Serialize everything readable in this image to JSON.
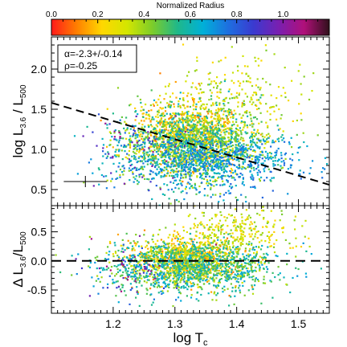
{
  "chart_data": [
    {
      "type": "colorbar",
      "label": "Normalized Radius",
      "range": [
        0.0,
        1.2
      ],
      "ticks": [
        "0.0",
        "0.2",
        "0.4",
        "0.6",
        "0.8",
        "1.0"
      ],
      "colormap": [
        "#ff1a1a",
        "#ff7f00",
        "#ffd700",
        "#d4e600",
        "#7ccc2a",
        "#1fb88a",
        "#00b0d8",
        "#1e6fe0",
        "#3a3ad0",
        "#7a1fb0",
        "#b0107a",
        "#30101a"
      ]
    },
    {
      "type": "scatter",
      "panel": "top",
      "xlabel": "log T",
      "xlabel_sub": "c",
      "ylabel": "log L",
      "ylabel_sub": "3.6",
      "ylabel_tail": " / L",
      "ylabel_tail_sub": "500",
      "xlim": [
        1.1,
        1.55
      ],
      "ylim": [
        0.3,
        2.4
      ],
      "yticks": [
        "0.5",
        "1.0",
        "1.5",
        "2.0"
      ],
      "annotations": [
        "α=-2.3+/-0.14",
        "ρ=-0.25"
      ],
      "fit_line": {
        "x": [
          1.1,
          1.55
        ],
        "y": [
          1.58,
          0.56
        ],
        "style": "dashed"
      },
      "error_bar": {
        "x": 1.155,
        "y": 0.6,
        "xerr": 0.035,
        "yerr": 0.07
      },
      "clouds": [
        {
          "cx": 1.32,
          "cy": 1.18,
          "sx": 0.045,
          "sy": 0.22,
          "r": [
            0.1,
            0.35
          ],
          "n": 900
        },
        {
          "cx": 1.33,
          "cy": 1.05,
          "sx": 0.06,
          "sy": 0.25,
          "r": [
            0.35,
            0.65
          ],
          "n": 1300
        },
        {
          "cx": 1.36,
          "cy": 0.85,
          "sx": 0.07,
          "sy": 0.18,
          "r": [
            0.6,
            0.8
          ],
          "n": 700
        },
        {
          "cx": 1.4,
          "cy": 1.6,
          "sx": 0.05,
          "sy": 0.28,
          "r": [
            0.2,
            0.45
          ],
          "n": 260
        },
        {
          "cx": 1.24,
          "cy": 1.0,
          "sx": 0.04,
          "sy": 0.25,
          "r": [
            0.45,
            1.1
          ],
          "n": 120
        }
      ]
    },
    {
      "type": "scatter",
      "panel": "bottom",
      "xlabel": "log T",
      "xlabel_sub": "c",
      "ylabel": "Δ L",
      "ylabel_sub": "3.6",
      "ylabel_tail": "/L",
      "ylabel_tail_sub": "500",
      "xlim": [
        1.1,
        1.55
      ],
      "ylim": [
        -0.9,
        0.95
      ],
      "xticks": [
        "1.2",
        "1.3",
        "1.4",
        "1.5"
      ],
      "yticks": [
        "-0.5",
        "0.0",
        "0.5"
      ],
      "zero_line": {
        "y": 0.0,
        "style": "dashed"
      },
      "clouds": [
        {
          "cx": 1.32,
          "cy": 0.05,
          "sx": 0.045,
          "sy": 0.2,
          "r": [
            0.1,
            0.35
          ],
          "n": 800
        },
        {
          "cx": 1.33,
          "cy": -0.1,
          "sx": 0.065,
          "sy": 0.22,
          "r": [
            0.35,
            0.7
          ],
          "n": 1300
        },
        {
          "cx": 1.4,
          "cy": 0.55,
          "sx": 0.05,
          "sy": 0.18,
          "r": [
            0.2,
            0.45
          ],
          "n": 260
        },
        {
          "cx": 1.24,
          "cy": -0.2,
          "sx": 0.04,
          "sy": 0.25,
          "r": [
            0.45,
            1.1
          ],
          "n": 120
        }
      ]
    }
  ]
}
